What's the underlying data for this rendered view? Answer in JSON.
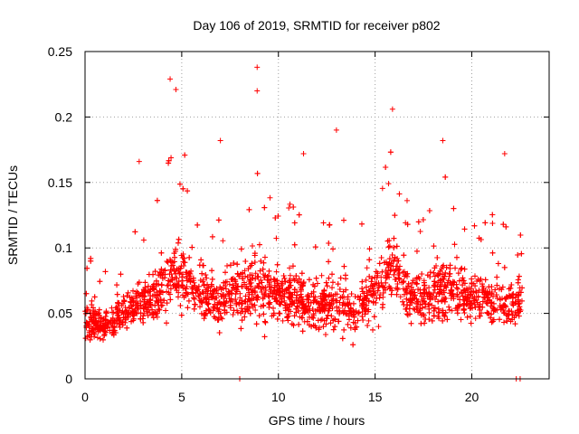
{
  "chart_data": {
    "type": "scatter",
    "title": "Day 106 of 2019, SRMTID for receiver p802",
    "xlabel": "GPS time / hours",
    "ylabel": "SRMTID / TECUs",
    "xlim": [
      0,
      24
    ],
    "ylim": [
      0,
      0.25
    ],
    "xticks": [
      0,
      5,
      10,
      15,
      20
    ],
    "xtick_labels": [
      "0",
      "5",
      "10",
      "15",
      "20"
    ],
    "yticks": [
      0,
      0.05,
      0.1,
      0.15,
      0.2,
      0.25
    ],
    "ytick_labels": [
      "0",
      "0.05",
      "0.1",
      "0.15",
      "0.2",
      "0.25"
    ],
    "grid": true,
    "marker": "+",
    "color": "#ff0000",
    "series": [
      {
        "name": "SRMTID",
        "notable_points": [
          {
            "x": 4.4,
            "y": 0.229
          },
          {
            "x": 4.7,
            "y": 0.221
          },
          {
            "x": 8.9,
            "y": 0.238
          },
          {
            "x": 8.9,
            "y": 0.22
          },
          {
            "x": 15.9,
            "y": 0.206
          },
          {
            "x": 13.0,
            "y": 0.19
          },
          {
            "x": 18.5,
            "y": 0.182
          },
          {
            "x": 21.7,
            "y": 0.172
          },
          {
            "x": 7.0,
            "y": 0.182
          },
          {
            "x": 2.8,
            "y": 0.166
          },
          {
            "x": 11.3,
            "y": 0.172
          },
          {
            "x": 8.0,
            "y": 0.0
          },
          {
            "x": 22.3,
            "y": 0.0
          },
          {
            "x": 22.5,
            "y": 0.0
          }
        ],
        "hourly_profile": {
          "hours": [
            0,
            1,
            2,
            3,
            4,
            5,
            6,
            7,
            8,
            9,
            10,
            11,
            12,
            13,
            14,
            15,
            16,
            17,
            18,
            19,
            20,
            21,
            22,
            22.6
          ],
          "median": [
            0.045,
            0.04,
            0.052,
            0.058,
            0.072,
            0.08,
            0.065,
            0.06,
            0.068,
            0.07,
            0.065,
            0.06,
            0.055,
            0.058,
            0.05,
            0.07,
            0.085,
            0.06,
            0.065,
            0.068,
            0.062,
            0.06,
            0.055,
            0.06
          ],
          "spread": [
            0.03,
            0.025,
            0.03,
            0.035,
            0.05,
            0.055,
            0.04,
            0.045,
            0.045,
            0.055,
            0.04,
            0.045,
            0.035,
            0.045,
            0.035,
            0.05,
            0.06,
            0.04,
            0.05,
            0.05,
            0.035,
            0.04,
            0.04,
            0.03
          ],
          "points_per_hour": 155
        }
      }
    ]
  }
}
